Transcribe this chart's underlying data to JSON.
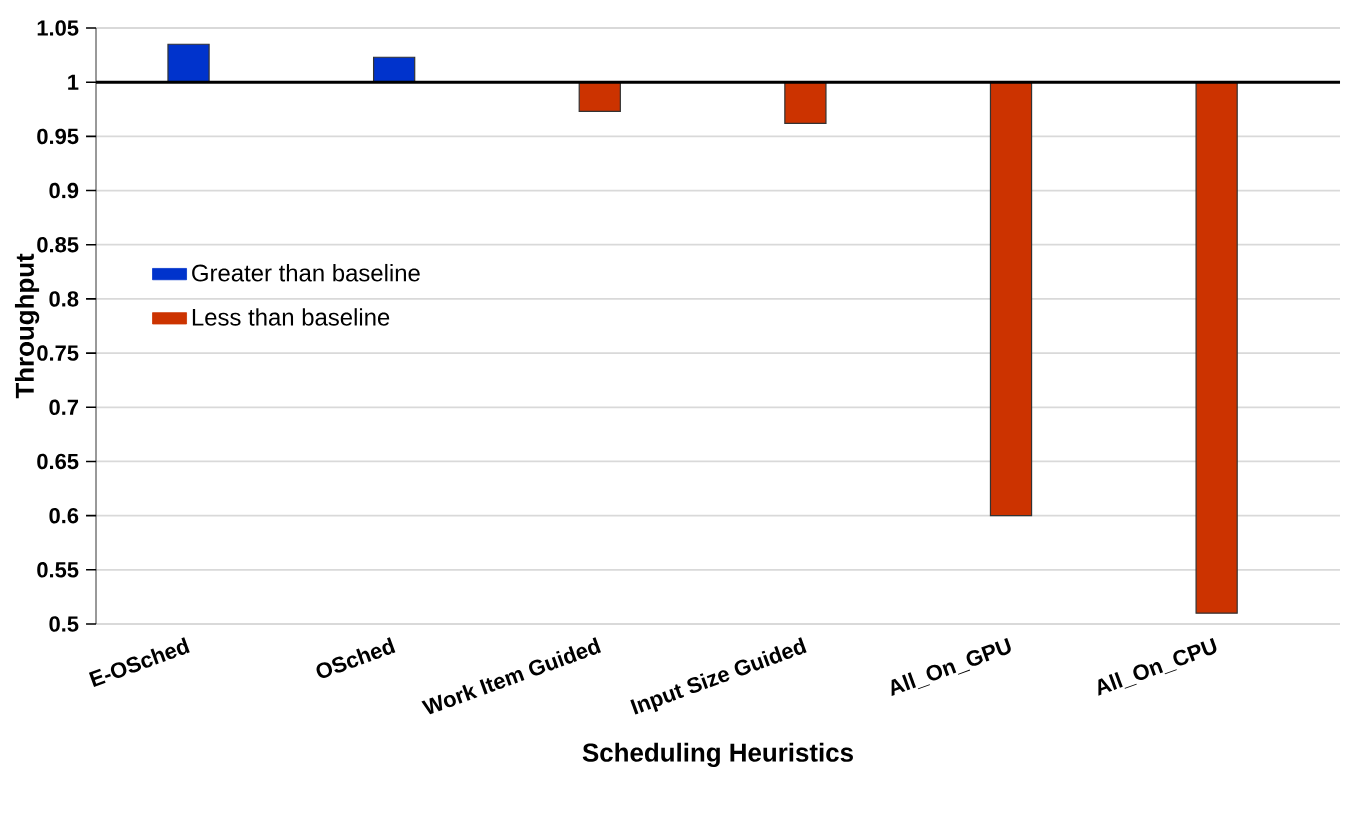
{
  "chart_data": {
    "type": "bar",
    "xlabel": "Scheduling Heuristics",
    "ylabel": "Throughput",
    "categories": [
      "E-OSched",
      "OSched",
      "Work Item Guided",
      "Input Size Guided",
      "All_On_GPU",
      "All_On_CPU"
    ],
    "series": [
      {
        "name": "Greater than baseline",
        "color": "#0033cc",
        "base": [
          1,
          1,
          null,
          null,
          null,
          null
        ],
        "values": [
          0.035,
          0.023,
          null,
          null,
          null,
          null
        ]
      },
      {
        "name": "Less than baseline",
        "color": "#cc3300",
        "base": [
          null,
          null,
          1,
          1,
          1,
          1
        ],
        "values": [
          null,
          null,
          -0.027,
          -0.038,
          -0.4,
          -0.49
        ]
      }
    ],
    "ylim": [
      0.5,
      1.05
    ],
    "yticks": [
      0.5,
      0.55,
      0.6,
      0.65,
      0.7,
      0.75,
      0.8,
      0.85,
      0.9,
      0.95,
      1,
      1.05
    ],
    "ref_lines": [
      {
        "axis": "y",
        "value": 1,
        "color": "#000000"
      }
    ],
    "grid": "y",
    "legend": "left"
  }
}
